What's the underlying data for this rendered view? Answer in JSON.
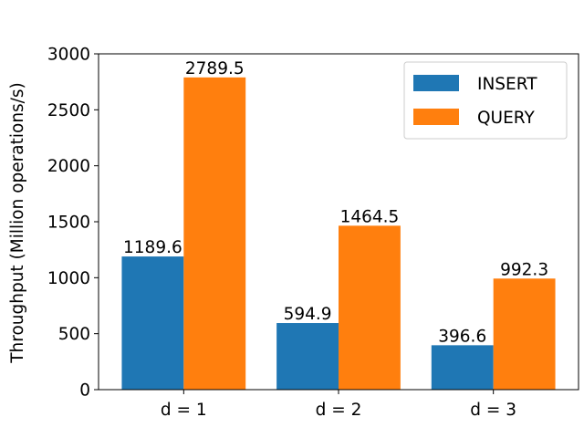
{
  "chart_data": {
    "type": "bar",
    "categories": [
      "d = 1",
      "d = 2",
      "d = 3"
    ],
    "series": [
      {
        "name": "INSERT",
        "values": [
          1189.6,
          594.9,
          396.6
        ],
        "labels": [
          "1189.6",
          "594.9",
          "396.6"
        ],
        "color": "#1f77b4"
      },
      {
        "name": "QUERY",
        "values": [
          2789.5,
          1464.5,
          992.3
        ],
        "labels": [
          "2789.5",
          "1464.5",
          "992.3"
        ],
        "color": "#ff7f0e"
      }
    ],
    "yticks": [
      "0",
      "500",
      "1000",
      "1500",
      "2000",
      "2500",
      "3000"
    ],
    "ylim": [
      0,
      3000
    ],
    "ylabel": "Throughput (Million operations/s)",
    "xlabel": "",
    "title": "",
    "legend": "top-right",
    "grid": false
  }
}
